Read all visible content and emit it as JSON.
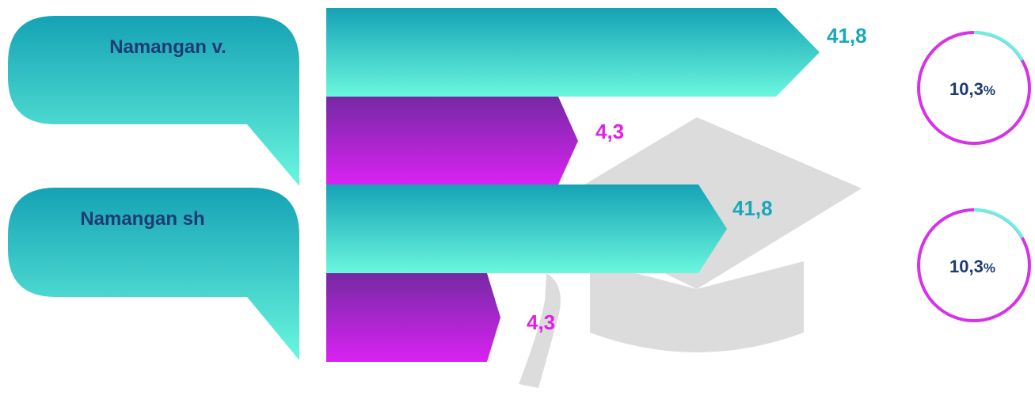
{
  "groups": [
    {
      "label": "Namangan v.",
      "value_a": "41,8",
      "value_b": "4,3",
      "percent": {
        "number": "10,3",
        "unit": "%"
      }
    },
    {
      "label": "Namangan sh",
      "value_a": "41,8",
      "value_b": "4,3",
      "percent": {
        "number": "10,3",
        "unit": "%"
      }
    }
  ]
}
